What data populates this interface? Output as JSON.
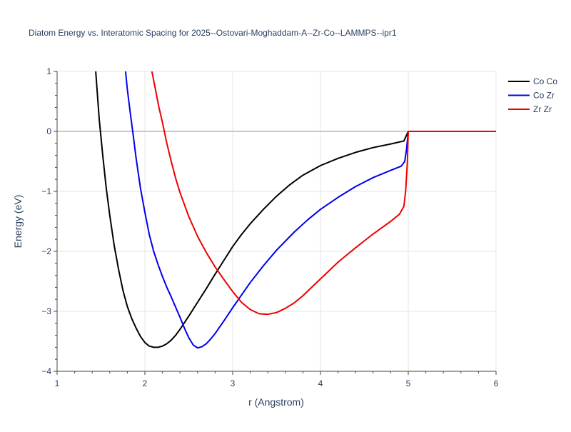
{
  "chart_data": {
    "type": "line",
    "title": "Diatom Energy vs. Interatomic Spacing for 2025--Ostovari-Moghaddam-A--Zr-Co--LAMMPS--ipr1",
    "xlabel": "r (Angstrom)",
    "ylabel": "Energy (eV)",
    "xlim": [
      1,
      6
    ],
    "ylim": [
      -4,
      1
    ],
    "xticks": [
      "1",
      "2",
      "3",
      "4",
      "5",
      "6"
    ],
    "yticks": [
      "1",
      "0",
      "−1",
      "−2",
      "−3",
      "−4"
    ],
    "grid": true,
    "legend_position": "top-right",
    "series": [
      {
        "name": "Co Co",
        "color": "#000000",
        "points": [
          [
            1.44,
            1.0
          ],
          [
            1.48,
            0.2
          ],
          [
            1.52,
            -0.4
          ],
          [
            1.56,
            -0.95
          ],
          [
            1.6,
            -1.4
          ],
          [
            1.65,
            -1.9
          ],
          [
            1.7,
            -2.3
          ],
          [
            1.75,
            -2.65
          ],
          [
            1.8,
            -2.92
          ],
          [
            1.85,
            -3.12
          ],
          [
            1.9,
            -3.28
          ],
          [
            1.95,
            -3.42
          ],
          [
            2.0,
            -3.52
          ],
          [
            2.05,
            -3.58
          ],
          [
            2.1,
            -3.6
          ],
          [
            2.15,
            -3.6
          ],
          [
            2.2,
            -3.58
          ],
          [
            2.25,
            -3.54
          ],
          [
            2.3,
            -3.48
          ],
          [
            2.35,
            -3.4
          ],
          [
            2.4,
            -3.3
          ],
          [
            2.5,
            -3.08
          ],
          [
            2.6,
            -2.85
          ],
          [
            2.7,
            -2.62
          ],
          [
            2.8,
            -2.38
          ],
          [
            2.9,
            -2.15
          ],
          [
            3.0,
            -1.92
          ],
          [
            3.1,
            -1.72
          ],
          [
            3.2,
            -1.54
          ],
          [
            3.35,
            -1.3
          ],
          [
            3.5,
            -1.08
          ],
          [
            3.65,
            -0.89
          ],
          [
            3.8,
            -0.73
          ],
          [
            4.0,
            -0.57
          ],
          [
            4.2,
            -0.45
          ],
          [
            4.4,
            -0.35
          ],
          [
            4.6,
            -0.27
          ],
          [
            4.8,
            -0.21
          ],
          [
            4.95,
            -0.16
          ],
          [
            5.0,
            0.0
          ],
          [
            6.0,
            0.0
          ]
        ]
      },
      {
        "name": "Co Zr",
        "color": "#0000ee",
        "points": [
          [
            1.78,
            1.0
          ],
          [
            1.8,
            0.7
          ],
          [
            1.83,
            0.35
          ],
          [
            1.87,
            -0.1
          ],
          [
            1.9,
            -0.45
          ],
          [
            1.95,
            -0.95
          ],
          [
            2.0,
            -1.35
          ],
          [
            2.05,
            -1.72
          ],
          [
            2.1,
            -2.0
          ],
          [
            2.15,
            -2.22
          ],
          [
            2.2,
            -2.42
          ],
          [
            2.25,
            -2.6
          ],
          [
            2.3,
            -2.76
          ],
          [
            2.35,
            -2.93
          ],
          [
            2.4,
            -3.1
          ],
          [
            2.45,
            -3.28
          ],
          [
            2.5,
            -3.44
          ],
          [
            2.55,
            -3.56
          ],
          [
            2.6,
            -3.61
          ],
          [
            2.65,
            -3.59
          ],
          [
            2.7,
            -3.54
          ],
          [
            2.75,
            -3.46
          ],
          [
            2.8,
            -3.37
          ],
          [
            2.9,
            -3.16
          ],
          [
            3.0,
            -2.94
          ],
          [
            3.1,
            -2.73
          ],
          [
            3.2,
            -2.52
          ],
          [
            3.35,
            -2.24
          ],
          [
            3.5,
            -1.98
          ],
          [
            3.7,
            -1.68
          ],
          [
            3.85,
            -1.48
          ],
          [
            4.0,
            -1.3
          ],
          [
            4.2,
            -1.1
          ],
          [
            4.4,
            -0.92
          ],
          [
            4.6,
            -0.77
          ],
          [
            4.8,
            -0.65
          ],
          [
            4.92,
            -0.58
          ],
          [
            4.96,
            -0.5
          ],
          [
            4.98,
            -0.3
          ],
          [
            5.0,
            0.0
          ],
          [
            6.0,
            0.0
          ]
        ]
      },
      {
        "name": "Zr Zr",
        "color": "#ee0000",
        "points": [
          [
            2.08,
            1.0
          ],
          [
            2.12,
            0.7
          ],
          [
            2.16,
            0.4
          ],
          [
            2.2,
            0.15
          ],
          [
            2.25,
            -0.2
          ],
          [
            2.3,
            -0.5
          ],
          [
            2.35,
            -0.78
          ],
          [
            2.4,
            -1.02
          ],
          [
            2.5,
            -1.42
          ],
          [
            2.6,
            -1.75
          ],
          [
            2.7,
            -2.02
          ],
          [
            2.8,
            -2.26
          ],
          [
            2.9,
            -2.47
          ],
          [
            3.0,
            -2.67
          ],
          [
            3.1,
            -2.85
          ],
          [
            3.2,
            -2.97
          ],
          [
            3.3,
            -3.04
          ],
          [
            3.4,
            -3.05
          ],
          [
            3.5,
            -3.02
          ],
          [
            3.6,
            -2.95
          ],
          [
            3.7,
            -2.86
          ],
          [
            3.8,
            -2.74
          ],
          [
            4.0,
            -2.46
          ],
          [
            4.2,
            -2.18
          ],
          [
            4.4,
            -1.94
          ],
          [
            4.6,
            -1.71
          ],
          [
            4.8,
            -1.5
          ],
          [
            4.9,
            -1.38
          ],
          [
            4.95,
            -1.25
          ],
          [
            4.97,
            -1.0
          ],
          [
            4.99,
            -0.5
          ],
          [
            5.0,
            0.0
          ],
          [
            6.0,
            0.0
          ]
        ]
      }
    ]
  }
}
